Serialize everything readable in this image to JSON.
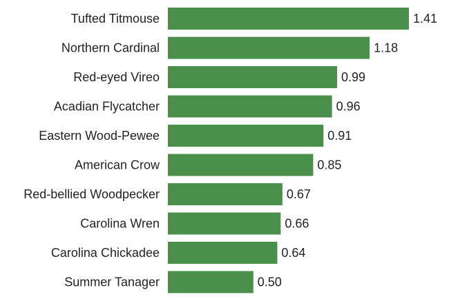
{
  "chart_data": {
    "type": "bar",
    "orientation": "horizontal",
    "title": "",
    "xlabel": "",
    "ylabel": "",
    "categories": [
      "Tufted Titmouse",
      "Northern Cardinal",
      "Red-eyed Vireo",
      "Acadian Flycatcher",
      "Eastern Wood-Pewee",
      "American Crow",
      "Red-bellied Woodpecker",
      "Carolina Wren",
      "Carolina Chickadee",
      "Summer Tanager"
    ],
    "values": [
      1.41,
      1.18,
      0.99,
      0.96,
      0.91,
      0.85,
      0.67,
      0.66,
      0.64,
      0.5
    ],
    "value_labels": [
      "1.41",
      "1.18",
      "0.99",
      "0.96",
      "0.91",
      "0.85",
      "0.67",
      "0.66",
      "0.64",
      "0.50"
    ],
    "xlim": [
      0,
      1.41
    ],
    "grid": false,
    "legend": "none",
    "bar_color": "#4a8f4a"
  }
}
